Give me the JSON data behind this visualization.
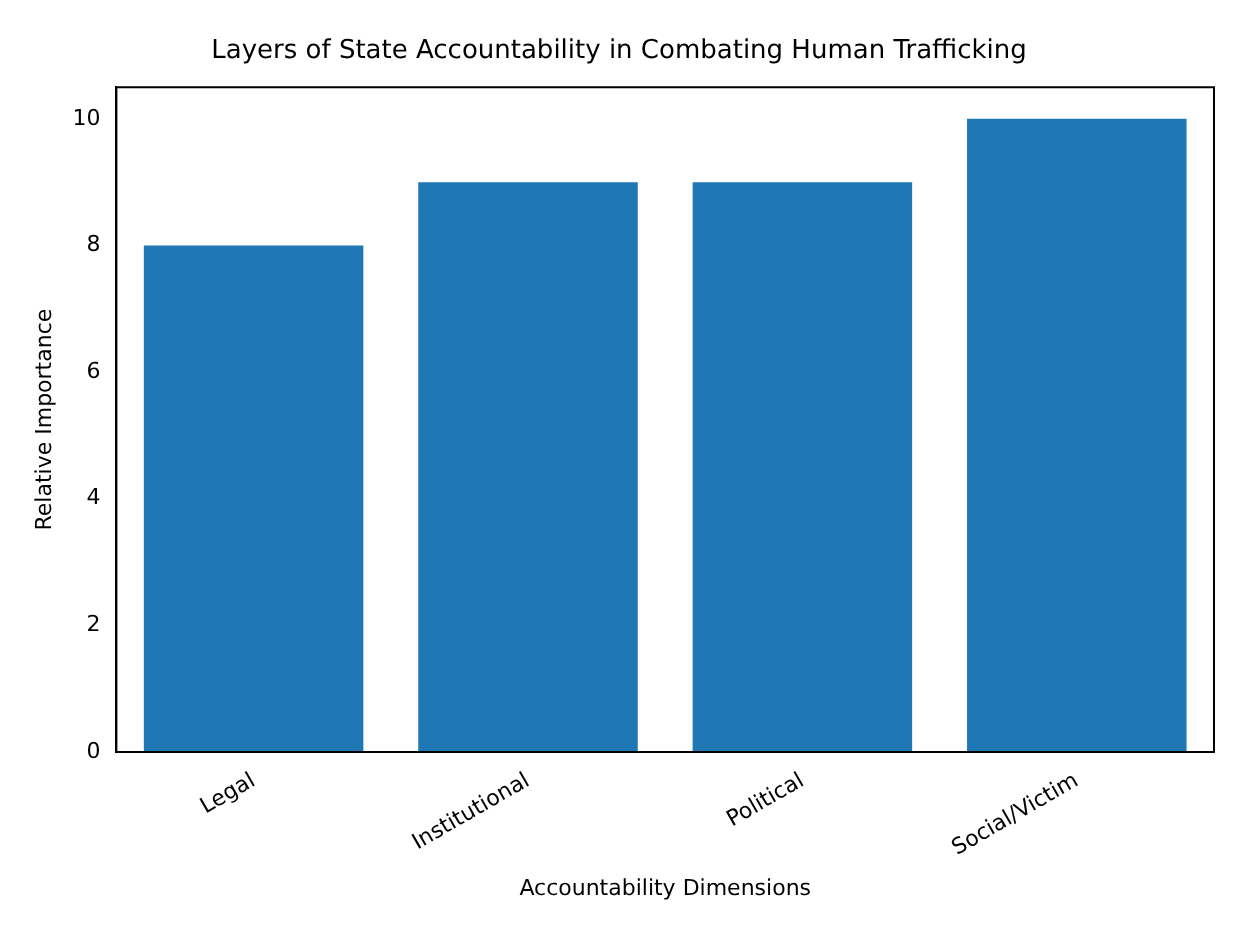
{
  "chart_data": {
    "type": "bar",
    "title": "Layers of State Accountability in Combating Human Trafficking",
    "xlabel": "Accountability Dimensions",
    "ylabel": "Relative Importance",
    "categories": [
      "Legal",
      "Institutional",
      "Political",
      "Social/Victim"
    ],
    "values": [
      8,
      9,
      9,
      10
    ],
    "color": "#1f77b4",
    "ylim": [
      0,
      10.5
    ],
    "yticks": [
      0,
      2,
      4,
      6,
      8,
      10
    ],
    "grid": false,
    "legend": false
  }
}
